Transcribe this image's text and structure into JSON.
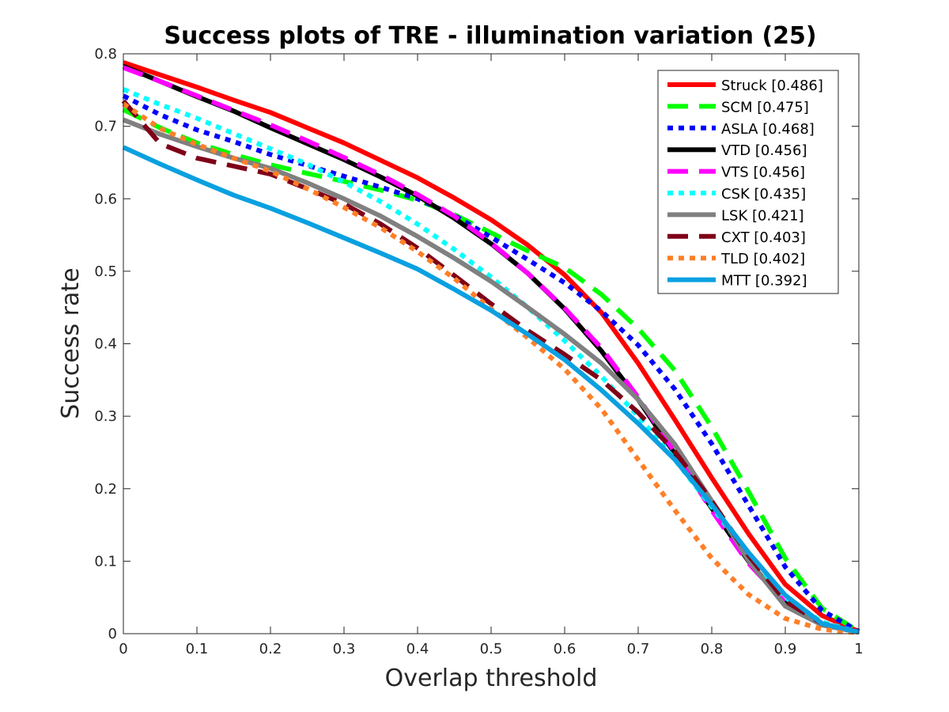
{
  "chart_data": {
    "type": "line",
    "title": "Success plots of TRE - illumination variation (25)",
    "xlabel": "Overlap threshold",
    "ylabel": "Success rate",
    "xlim": [
      0,
      1
    ],
    "ylim": [
      0,
      0.8
    ],
    "xticks": [
      0,
      0.1,
      0.2,
      0.3,
      0.4,
      0.5,
      0.6,
      0.7,
      0.8,
      0.9,
      1
    ],
    "yticks": [
      0,
      0.1,
      0.2,
      0.3,
      0.4,
      0.5,
      0.6,
      0.7,
      0.8
    ],
    "grid": false,
    "legend_position": "top-right",
    "x": [
      0,
      0.05,
      0.1,
      0.15,
      0.2,
      0.25,
      0.3,
      0.35,
      0.4,
      0.45,
      0.5,
      0.55,
      0.6,
      0.65,
      0.7,
      0.75,
      0.8,
      0.85,
      0.9,
      0.95,
      1
    ],
    "series": [
      {
        "name": "Struck [0.486]",
        "color": "#ff0000",
        "dash": "solid",
        "values": [
          0.788,
          0.771,
          0.754,
          0.736,
          0.719,
          0.698,
          0.677,
          0.653,
          0.629,
          0.601,
          0.571,
          0.536,
          0.495,
          0.443,
          0.373,
          0.295,
          0.215,
          0.138,
          0.068,
          0.025,
          0.003
        ]
      },
      {
        "name": "SCM [0.475]",
        "color": "#00ff00",
        "dash": "dashed",
        "values": [
          0.723,
          0.698,
          0.677,
          0.661,
          0.647,
          0.635,
          0.624,
          0.612,
          0.598,
          0.578,
          0.553,
          0.528,
          0.505,
          0.468,
          0.421,
          0.363,
          0.285,
          0.196,
          0.104,
          0.035,
          0.003
        ]
      },
      {
        "name": "ASLA [0.468]",
        "color": "#0000ff",
        "dash": "dotted",
        "values": [
          0.742,
          0.716,
          0.695,
          0.679,
          0.661,
          0.646,
          0.631,
          0.616,
          0.6,
          0.577,
          0.547,
          0.516,
          0.484,
          0.445,
          0.398,
          0.337,
          0.262,
          0.177,
          0.092,
          0.032,
          0.003
        ]
      },
      {
        "name": "VTD [0.456]",
        "color": "#000000",
        "dash": "solid",
        "values": [
          0.783,
          0.762,
          0.741,
          0.721,
          0.698,
          0.676,
          0.654,
          0.63,
          0.604,
          0.573,
          0.538,
          0.497,
          0.448,
          0.39,
          0.323,
          0.248,
          0.173,
          0.1,
          0.042,
          0.013,
          0.002
        ]
      },
      {
        "name": "VTS [0.456]",
        "color": "#ff00ff",
        "dash": "dashed",
        "values": [
          0.781,
          0.762,
          0.742,
          0.722,
          0.702,
          0.68,
          0.657,
          0.633,
          0.606,
          0.576,
          0.539,
          0.497,
          0.449,
          0.394,
          0.326,
          0.25,
          0.17,
          0.097,
          0.043,
          0.013,
          0.002
        ]
      },
      {
        "name": "CSK [0.435]",
        "color": "#00ffff",
        "dash": "dotted",
        "values": [
          0.751,
          0.73,
          0.711,
          0.69,
          0.669,
          0.648,
          0.623,
          0.596,
          0.565,
          0.53,
          0.492,
          0.45,
          0.404,
          0.355,
          0.3,
          0.24,
          0.175,
          0.108,
          0.05,
          0.016,
          0.002
        ]
      },
      {
        "name": "LSK [0.421]",
        "color": "#808080",
        "dash": "solid",
        "values": [
          0.709,
          0.689,
          0.672,
          0.656,
          0.642,
          0.622,
          0.6,
          0.576,
          0.548,
          0.518,
          0.486,
          0.45,
          0.413,
          0.373,
          0.323,
          0.261,
          0.183,
          0.101,
          0.038,
          0.012,
          0.002
        ]
      },
      {
        "name": "CXT [0.403]",
        "color": "#7f0018",
        "dash": "dashed",
        "values": [
          0.735,
          0.676,
          0.656,
          0.645,
          0.634,
          0.614,
          0.593,
          0.565,
          0.532,
          0.494,
          0.455,
          0.418,
          0.385,
          0.35,
          0.305,
          0.251,
          0.183,
          0.108,
          0.045,
          0.014,
          0.002
        ]
      },
      {
        "name": "TLD [0.402]",
        "color": "#ff7f27",
        "dash": "dotted",
        "values": [
          0.731,
          0.697,
          0.675,
          0.656,
          0.638,
          0.614,
          0.588,
          0.56,
          0.527,
          0.49,
          0.448,
          0.408,
          0.365,
          0.31,
          0.24,
          0.17,
          0.104,
          0.054,
          0.021,
          0.006,
          0.001
        ]
      },
      {
        "name": "MTT [0.392]",
        "color": "#0aa0e0",
        "dash": "solid",
        "values": [
          0.671,
          0.648,
          0.626,
          0.605,
          0.587,
          0.567,
          0.546,
          0.525,
          0.503,
          0.475,
          0.446,
          0.413,
          0.378,
          0.336,
          0.29,
          0.24,
          0.178,
          0.112,
          0.053,
          0.014,
          0.002
        ]
      }
    ]
  }
}
